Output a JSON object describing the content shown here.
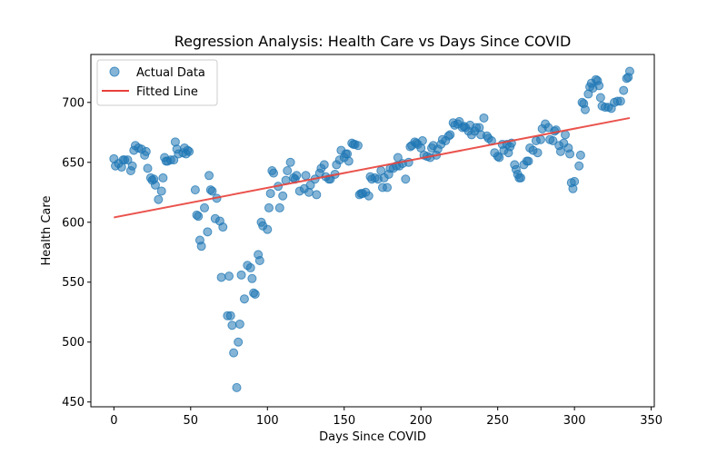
{
  "chart_data": {
    "type": "scatter",
    "title": "Regression Analysis: Health Care vs Days Since COVID",
    "xlabel": "Days Since COVID",
    "ylabel": "Health Care",
    "xlim": [
      -15,
      352
    ],
    "ylim": [
      446,
      740
    ],
    "x_ticks": [
      0,
      50,
      100,
      150,
      200,
      250,
      300,
      350
    ],
    "y_ticks": [
      450,
      500,
      550,
      600,
      650,
      700
    ],
    "grid": false,
    "legend_position": "top-left",
    "colors": {
      "scatter": "#1f77b4",
      "line": "#e8403a"
    },
    "series": [
      {
        "name": "Actual Data",
        "kind": "scatter",
        "points": [
          [
            0,
            653
          ],
          [
            1,
            647
          ],
          [
            3,
            649
          ],
          [
            5,
            646
          ],
          [
            6,
            652
          ],
          [
            7,
            652
          ],
          [
            9,
            652
          ],
          [
            11,
            643
          ],
          [
            12,
            647
          ],
          [
            13,
            660
          ],
          [
            14,
            664
          ],
          [
            16,
            662
          ],
          [
            18,
            661
          ],
          [
            20,
            656
          ],
          [
            21,
            659
          ],
          [
            22,
            645
          ],
          [
            24,
            637
          ],
          [
            25,
            635
          ],
          [
            26,
            636
          ],
          [
            27,
            631
          ],
          [
            29,
            619
          ],
          [
            31,
            626
          ],
          [
            32,
            637
          ],
          [
            33,
            654
          ],
          [
            34,
            651
          ],
          [
            35,
            651
          ],
          [
            37,
            652
          ],
          [
            39,
            652
          ],
          [
            40,
            667
          ],
          [
            41,
            661
          ],
          [
            42,
            657
          ],
          [
            45,
            658
          ],
          [
            46,
            662
          ],
          [
            47,
            657
          ],
          [
            48,
            660
          ],
          [
            49,
            659
          ],
          [
            53,
            627
          ],
          [
            54,
            606
          ],
          [
            55,
            605
          ],
          [
            56,
            585
          ],
          [
            57,
            580
          ],
          [
            59,
            612
          ],
          [
            61,
            592
          ],
          [
            62,
            639
          ],
          [
            63,
            627
          ],
          [
            64,
            626
          ],
          [
            66,
            603
          ],
          [
            67,
            620
          ],
          [
            69,
            601
          ],
          [
            70,
            554
          ],
          [
            71,
            596
          ],
          [
            74,
            522
          ],
          [
            75,
            555
          ],
          [
            76,
            522
          ],
          [
            77,
            514
          ],
          [
            78,
            491
          ],
          [
            80,
            462
          ],
          [
            81,
            500
          ],
          [
            82,
            515
          ],
          [
            83,
            556
          ],
          [
            85,
            536
          ],
          [
            87,
            564
          ],
          [
            89,
            562
          ],
          [
            90,
            553
          ],
          [
            91,
            541
          ],
          [
            92,
            540
          ],
          [
            94,
            573
          ],
          [
            95,
            568
          ],
          [
            96,
            600
          ],
          [
            97,
            597
          ],
          [
            100,
            594
          ],
          [
            101,
            612
          ],
          [
            102,
            624
          ],
          [
            103,
            643
          ],
          [
            104,
            641
          ],
          [
            107,
            630
          ],
          [
            108,
            612
          ],
          [
            110,
            622
          ],
          [
            112,
            635
          ],
          [
            113,
            643
          ],
          [
            115,
            650
          ],
          [
            117,
            637
          ],
          [
            118,
            636
          ],
          [
            119,
            639
          ],
          [
            121,
            626
          ],
          [
            124,
            628
          ],
          [
            125,
            639
          ],
          [
            127,
            625
          ],
          [
            128,
            631
          ],
          [
            131,
            636
          ],
          [
            132,
            623
          ],
          [
            134,
            641
          ],
          [
            135,
            645
          ],
          [
            137,
            648
          ],
          [
            138,
            638
          ],
          [
            140,
            636
          ],
          [
            141,
            636
          ],
          [
            144,
            640
          ],
          [
            145,
            648
          ],
          [
            147,
            652
          ],
          [
            148,
            660
          ],
          [
            150,
            654
          ],
          [
            151,
            657
          ],
          [
            152,
            657
          ],
          [
            153,
            651
          ],
          [
            155,
            666
          ],
          [
            156,
            665
          ],
          [
            157,
            665
          ],
          [
            159,
            664
          ],
          [
            160,
            623
          ],
          [
            161,
            624
          ],
          [
            162,
            624
          ],
          [
            164,
            625
          ],
          [
            166,
            622
          ],
          [
            167,
            638
          ],
          [
            168,
            636
          ],
          [
            170,
            637
          ],
          [
            172,
            636
          ],
          [
            174,
            643
          ],
          [
            175,
            629
          ],
          [
            176,
            637
          ],
          [
            178,
            629
          ],
          [
            179,
            640
          ],
          [
            180,
            645
          ],
          [
            182,
            645
          ],
          [
            184,
            647
          ],
          [
            185,
            654
          ],
          [
            186,
            647
          ],
          [
            188,
            649
          ],
          [
            190,
            636
          ],
          [
            192,
            650
          ],
          [
            193,
            663
          ],
          [
            194,
            664
          ],
          [
            196,
            667
          ],
          [
            197,
            666
          ],
          [
            198,
            665
          ],
          [
            200,
            662
          ],
          [
            201,
            668
          ],
          [
            202,
            656
          ],
          [
            204,
            655
          ],
          [
            206,
            654
          ],
          [
            207,
            662
          ],
          [
            208,
            664
          ],
          [
            210,
            656
          ],
          [
            211,
            661
          ],
          [
            213,
            665
          ],
          [
            214,
            669
          ],
          [
            216,
            668
          ],
          [
            218,
            672
          ],
          [
            219,
            673
          ],
          [
            221,
            683
          ],
          [
            222,
            681
          ],
          [
            224,
            682
          ],
          [
            225,
            684
          ],
          [
            227,
            679
          ],
          [
            228,
            680
          ],
          [
            229,
            679
          ],
          [
            231,
            676
          ],
          [
            232,
            681
          ],
          [
            233,
            673
          ],
          [
            235,
            676
          ],
          [
            236,
            679
          ],
          [
            238,
            679
          ],
          [
            239,
            673
          ],
          [
            241,
            687
          ],
          [
            243,
            672
          ],
          [
            244,
            670
          ],
          [
            246,
            668
          ],
          [
            248,
            658
          ],
          [
            250,
            655
          ],
          [
            251,
            654
          ],
          [
            253,
            665
          ],
          [
            254,
            660
          ],
          [
            256,
            665
          ],
          [
            257,
            658
          ],
          [
            258,
            663
          ],
          [
            259,
            666
          ],
          [
            261,
            648
          ],
          [
            262,
            644
          ],
          [
            263,
            640
          ],
          [
            264,
            637
          ],
          [
            265,
            637
          ],
          [
            267,
            648
          ],
          [
            269,
            651
          ],
          [
            270,
            651
          ],
          [
            271,
            662
          ],
          [
            273,
            660
          ],
          [
            275,
            668
          ],
          [
            276,
            658
          ],
          [
            278,
            669
          ],
          [
            279,
            678
          ],
          [
            281,
            682
          ],
          [
            283,
            679
          ],
          [
            284,
            669
          ],
          [
            286,
            668
          ],
          [
            287,
            676
          ],
          [
            288,
            677
          ],
          [
            290,
            664
          ],
          [
            291,
            659
          ],
          [
            293,
            666
          ],
          [
            294,
            673
          ],
          [
            296,
            662
          ],
          [
            297,
            657
          ],
          [
            298,
            633
          ],
          [
            299,
            628
          ],
          [
            300,
            634
          ],
          [
            303,
            647
          ],
          [
            304,
            656
          ],
          [
            305,
            700
          ],
          [
            306,
            699
          ],
          [
            307,
            694
          ],
          [
            309,
            707
          ],
          [
            310,
            713
          ],
          [
            311,
            716
          ],
          [
            312,
            712
          ],
          [
            314,
            719
          ],
          [
            315,
            718
          ],
          [
            316,
            714
          ],
          [
            317,
            704
          ],
          [
            318,
            697
          ],
          [
            320,
            696
          ],
          [
            322,
            696
          ],
          [
            324,
            695
          ],
          [
            326,
            700
          ],
          [
            328,
            701
          ],
          [
            330,
            701
          ],
          [
            332,
            710
          ],
          [
            334,
            720
          ],
          [
            335,
            721
          ],
          [
            336,
            726
          ]
        ]
      },
      {
        "name": "Fitted Line",
        "kind": "line",
        "points": [
          [
            0,
            604
          ],
          [
            336,
            687
          ]
        ]
      }
    ]
  }
}
